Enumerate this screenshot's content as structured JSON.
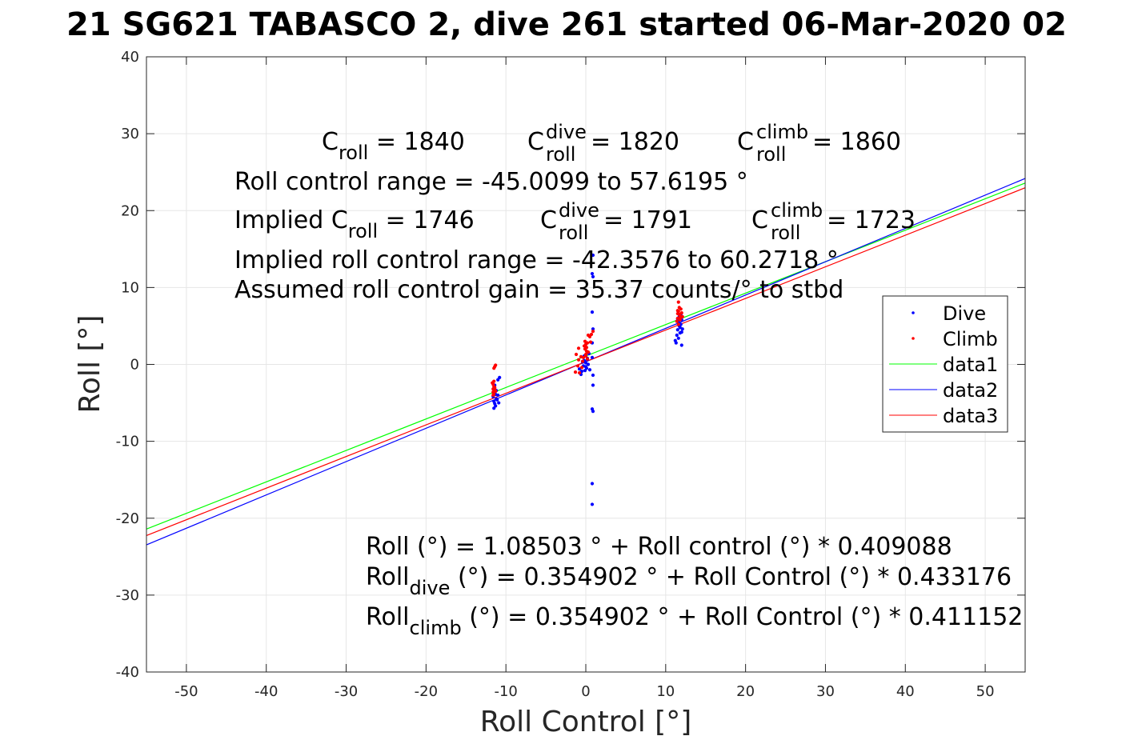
{
  "chart_data": {
    "type": "scatter",
    "title": "21 SG621 TABASCO 2, dive 261 started 06-Mar-2020 02",
    "xlabel": "Roll Control [°]",
    "ylabel": "Roll [°]",
    "xlim": [
      -55,
      55
    ],
    "ylim": [
      -40,
      40
    ],
    "xticks": [
      -50,
      -40,
      -30,
      -20,
      -10,
      0,
      10,
      20,
      30,
      40,
      50
    ],
    "yticks": [
      -40,
      -30,
      -20,
      -10,
      0,
      10,
      20,
      30,
      40
    ],
    "grid": true,
    "legend_position": "right",
    "series": [
      {
        "name": "Dive",
        "kind": "points",
        "color": "#0000ff",
        "points": [
          [
            -11.4,
            -3.2
          ],
          [
            -11.5,
            -3.6
          ],
          [
            -11.3,
            -3.9
          ],
          [
            -11.6,
            -4.2
          ],
          [
            -11.2,
            -4.5
          ],
          [
            -11.5,
            -4.8
          ],
          [
            -11.4,
            -5.1
          ],
          [
            -11.3,
            -5.4
          ],
          [
            -11.5,
            -5.7
          ],
          [
            -11.2,
            -3.4
          ],
          [
            -11.0,
            -4.0
          ],
          [
            -11.1,
            -4.6
          ],
          [
            -10.9,
            -5.0
          ],
          [
            -11.4,
            -2.7
          ],
          [
            -11.0,
            -2.0
          ],
          [
            -10.8,
            -1.7
          ],
          [
            -0.2,
            0.5
          ],
          [
            0.0,
            0.2
          ],
          [
            -0.3,
            -0.2
          ],
          [
            0.1,
            -0.5
          ],
          [
            -0.1,
            -0.8
          ],
          [
            0.2,
            0.8
          ],
          [
            -0.2,
            1.1
          ],
          [
            0.0,
            -0.3
          ],
          [
            0.3,
            0.0
          ],
          [
            0.4,
            1.4
          ],
          [
            -0.5,
            -0.9
          ],
          [
            -0.8,
            -0.6
          ],
          [
            -0.6,
            -1.3
          ],
          [
            0.5,
            -0.7
          ],
          [
            0.2,
            0.6
          ],
          [
            -0.4,
            0.3
          ],
          [
            0.8,
            2.8
          ],
          [
            0.9,
            4.6
          ],
          [
            0.8,
            6.8
          ],
          [
            0.9,
            11.4
          ],
          [
            0.8,
            11.8
          ],
          [
            0.9,
            14.2
          ],
          [
            0.8,
            0.9
          ],
          [
            0.9,
            -1.4
          ],
          [
            0.9,
            -2.7
          ],
          [
            0.8,
            -5.8
          ],
          [
            0.9,
            -6.1
          ],
          [
            0.8,
            -15.5
          ],
          [
            0.8,
            -18.2
          ],
          [
            11.5,
            4.5
          ],
          [
            11.7,
            5.0
          ],
          [
            11.6,
            5.5
          ],
          [
            11.8,
            4.8
          ],
          [
            11.9,
            5.2
          ],
          [
            12.0,
            5.8
          ],
          [
            11.4,
            3.8
          ],
          [
            11.6,
            3.4
          ],
          [
            11.8,
            4.1
          ],
          [
            12.1,
            4.6
          ],
          [
            11.5,
            5.9
          ],
          [
            11.7,
            6.2
          ],
          [
            11.9,
            6.5
          ],
          [
            12.0,
            4.2
          ],
          [
            11.2,
            3.1
          ],
          [
            11.3,
            2.8
          ],
          [
            12.0,
            2.5
          ],
          [
            11.6,
            6.0
          ]
        ]
      },
      {
        "name": "Climb",
        "kind": "points",
        "color": "#ff0000",
        "points": [
          [
            -11.6,
            -2.6
          ],
          [
            -11.5,
            -2.9
          ],
          [
            -11.4,
            -3.3
          ],
          [
            -11.6,
            -3.6
          ],
          [
            -11.5,
            -3.9
          ],
          [
            -11.7,
            -2.4
          ],
          [
            -11.4,
            -3.0
          ],
          [
            -11.6,
            -3.2
          ],
          [
            -11.5,
            -2.2
          ],
          [
            -11.4,
            -0.3
          ],
          [
            -11.3,
            -0.1
          ],
          [
            -11.5,
            -0.5
          ],
          [
            -11.6,
            -4.0
          ],
          [
            -11.3,
            -3.5
          ],
          [
            -0.1,
            2.0
          ],
          [
            0.1,
            1.7
          ],
          [
            -0.2,
            2.4
          ],
          [
            0.2,
            2.8
          ],
          [
            0.0,
            1.3
          ],
          [
            -0.3,
            0.9
          ],
          [
            0.3,
            1.6
          ],
          [
            0.1,
            2.2
          ],
          [
            -0.1,
            3.0
          ],
          [
            0.2,
            0.7
          ],
          [
            -0.4,
            0.4
          ],
          [
            0.0,
            2.6
          ],
          [
            -0.6,
            1.0
          ],
          [
            -0.9,
            0.6
          ],
          [
            -1.2,
            1.3
          ],
          [
            -1.0,
            -0.2
          ],
          [
            -0.8,
            -1.1
          ],
          [
            -1.3,
            -1.0
          ],
          [
            0.5,
            3.6
          ],
          [
            0.7,
            3.9
          ],
          [
            0.9,
            4.3
          ],
          [
            0.6,
            2.9
          ],
          [
            -0.9,
            2.1
          ],
          [
            -0.5,
            -0.4
          ],
          [
            0.3,
            3.8
          ],
          [
            0.0,
            1.1
          ],
          [
            11.5,
            6.0
          ],
          [
            11.7,
            6.5
          ],
          [
            11.6,
            6.9
          ],
          [
            11.8,
            6.3
          ],
          [
            11.9,
            7.2
          ],
          [
            11.4,
            5.6
          ],
          [
            11.6,
            5.2
          ],
          [
            11.8,
            5.8
          ],
          [
            12.0,
            6.7
          ],
          [
            11.5,
            7.0
          ],
          [
            11.7,
            7.4
          ],
          [
            11.9,
            6.1
          ],
          [
            11.6,
            8.1
          ],
          [
            11.5,
            6.6
          ],
          [
            12.1,
            6.2
          ]
        ]
      },
      {
        "name": "data1",
        "kind": "line",
        "color": "#00ff00",
        "intercept": 1.08503,
        "slope": 0.409088,
        "x_range": [
          -55,
          55
        ]
      },
      {
        "name": "data2",
        "kind": "line",
        "color": "#0000ff",
        "intercept": 0.354902,
        "slope": 0.433176,
        "x_range": [
          -55,
          55
        ]
      },
      {
        "name": "data3",
        "kind": "line",
        "color": "#ff0000",
        "intercept": 0.354902,
        "slope": 0.411152,
        "offset_note": "",
        "x_range": [
          -55,
          55
        ]
      }
    ]
  },
  "annotations": {
    "c_roll": {
      "prefix": "C",
      "sub": "roll",
      "value": " = 1840"
    },
    "c_roll_dive": {
      "prefix": "C",
      "sup": "dive",
      "sub": "roll",
      "value": " = 1820"
    },
    "c_roll_climb": {
      "prefix": "C",
      "sup": "climb",
      "sub": "roll",
      "value": " = 1860"
    },
    "roll_control_range": "Roll control range = -45.0099 to 57.6195 °",
    "implied_c_roll": {
      "prefix": "Implied C",
      "sub": "roll",
      "value": " = 1746"
    },
    "implied_c_roll_dive": {
      "prefix": "C",
      "sup": "dive",
      "sub": "roll",
      "value": " = 1791"
    },
    "implied_c_roll_climb": {
      "prefix": "C",
      "sup": "climb",
      "sub": "roll",
      "value": " = 1723"
    },
    "implied_range": "Implied roll control range = -42.3576 to 60.2718 °",
    "gain": "Assumed roll control gain = 35.37 counts/° to stbd",
    "fit_all": "Roll (°) = 1.08503 ° + Roll control (°) * 0.409088",
    "fit_dive": {
      "prefix": "Roll",
      "sub": "dive",
      "rest": " (°) = 0.354902 ° + Roll Control (°) * 0.433176"
    },
    "fit_climb": {
      "prefix": "Roll",
      "sub": "climb",
      "rest": " (°) = 0.354902 ° + Roll Control (°) * 0.411152"
    }
  }
}
